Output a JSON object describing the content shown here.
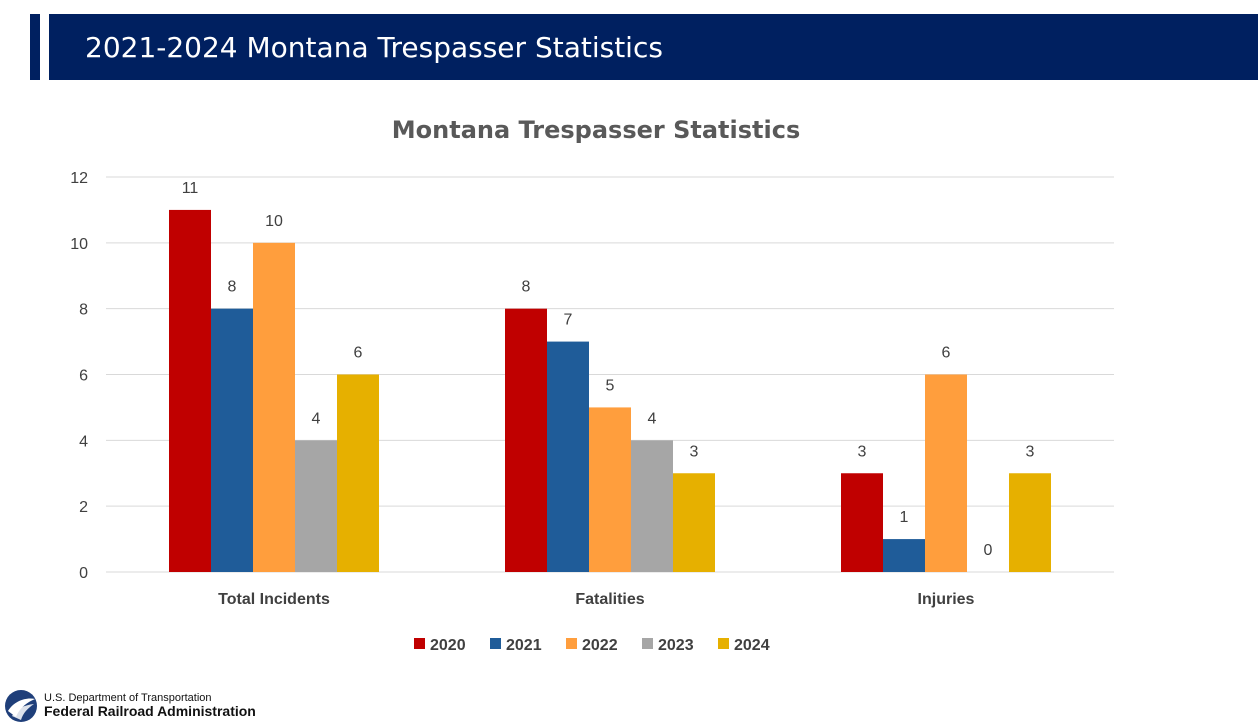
{
  "header": {
    "title": "2021-2024 Montana Trespasser Statistics"
  },
  "footer": {
    "department": "U.S. Department of Transportation",
    "agency": "Federal Railroad Administration"
  },
  "chart_data": {
    "type": "bar",
    "title": "Montana Trespasser Statistics",
    "xlabel": "",
    "ylabel": "",
    "categories": [
      "Total Incidents",
      "Fatalities",
      "Injuries"
    ],
    "series": [
      {
        "name": "2020",
        "values": [
          11,
          8,
          3
        ],
        "color": "#C00000"
      },
      {
        "name": "2021",
        "values": [
          8,
          7,
          1
        ],
        "color": "#1F5C99"
      },
      {
        "name": "2022",
        "values": [
          10,
          5,
          6
        ],
        "color": "#FF9E3D"
      },
      {
        "name": "2023",
        "values": [
          4,
          4,
          0
        ],
        "color": "#A6A6A6"
      },
      {
        "name": "2024",
        "values": [
          6,
          3,
          3
        ],
        "color": "#E6B000"
      }
    ],
    "ylim": [
      0,
      12
    ],
    "yticks": [
      0,
      2,
      4,
      6,
      8,
      10,
      12
    ],
    "grid": true,
    "legend": "bottom"
  }
}
